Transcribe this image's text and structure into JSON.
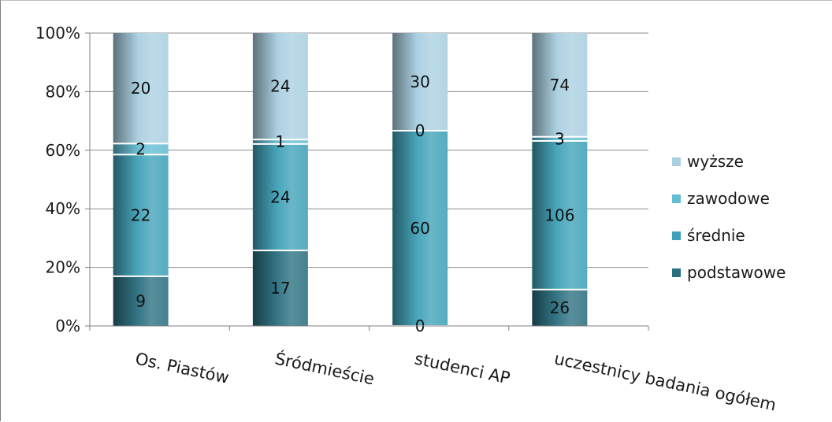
{
  "chart_data": {
    "type": "bar",
    "stacked": "percent",
    "categories": [
      "Os. Piastów",
      "Śródmieście",
      "studenci AP",
      "uczestnicy badania ogółem"
    ],
    "series": [
      {
        "name": "podstawowe",
        "values": [
          9,
          17,
          0,
          26
        ],
        "color": "#2a6f80"
      },
      {
        "name": "średnie",
        "values": [
          22,
          24,
          60,
          106
        ],
        "color": "#3fa1b8"
      },
      {
        "name": "zawodowe",
        "values": [
          2,
          1,
          0,
          3
        ],
        "color": "#63bcd2"
      },
      {
        "name": "wyższe",
        "values": [
          20,
          24,
          30,
          74
        ],
        "color": "#a9cfe0"
      }
    ],
    "yticks": [
      "0%",
      "20%",
      "40%",
      "60%",
      "80%",
      "100%"
    ],
    "ylim": [
      0,
      100
    ],
    "grid": true,
    "legend": "right",
    "legend_order": [
      "wyższe",
      "zawodowe",
      "średnie",
      "podstawowe"
    ],
    "title": "",
    "xlabel": "",
    "ylabel": ""
  }
}
